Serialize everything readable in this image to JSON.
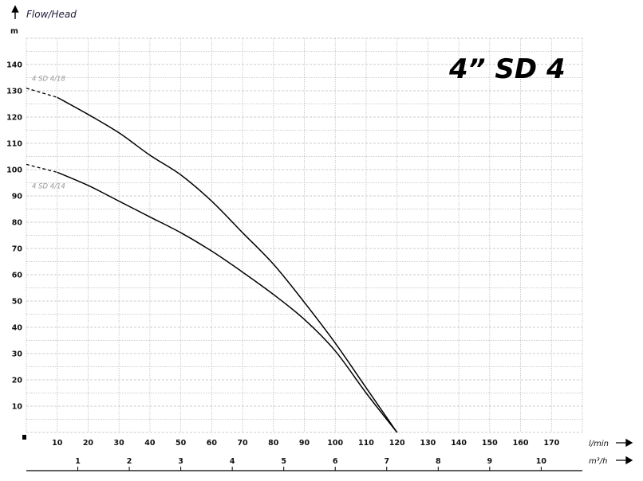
{
  "chart_data": {
    "type": "line",
    "title": "4” SD 4",
    "ylabel": "Flow/Head",
    "yunit": "m",
    "xunit": "l/min",
    "x2unit": "m³/h",
    "xlim": [
      0,
      180
    ],
    "ylim": [
      0,
      150
    ],
    "x_ticks": [
      10,
      20,
      30,
      40,
      50,
      60,
      70,
      80,
      90,
      100,
      110,
      120,
      130,
      140,
      150,
      160,
      170
    ],
    "x2_ticks": [
      1,
      2,
      3,
      4,
      5,
      6,
      7,
      8,
      9,
      10
    ],
    "y_ticks": [
      10,
      20,
      30,
      40,
      50,
      60,
      70,
      80,
      90,
      100,
      110,
      120,
      130,
      140
    ],
    "grid": true,
    "dashed_range": [
      0,
      10
    ],
    "series": [
      {
        "name": "4 SD 4/18",
        "x": [
          0,
          10,
          20,
          30,
          40,
          50,
          60,
          70,
          80,
          90,
          100,
          110,
          120
        ],
        "y": [
          131,
          127.5,
          121,
          114,
          105.5,
          98,
          88,
          76,
          64,
          49.5,
          34,
          17,
          0
        ]
      },
      {
        "name": "4 SD 4/14",
        "x": [
          0,
          10,
          20,
          30,
          40,
          50,
          60,
          70,
          80,
          90,
          100,
          110,
          120
        ],
        "y": [
          102,
          99,
          94,
          88,
          82,
          76,
          69,
          61,
          52.5,
          43,
          31,
          15,
          0
        ]
      }
    ],
    "colors": {
      "curve": "#000000",
      "grid": "#bdbdbd",
      "series_label": "#999999"
    }
  }
}
